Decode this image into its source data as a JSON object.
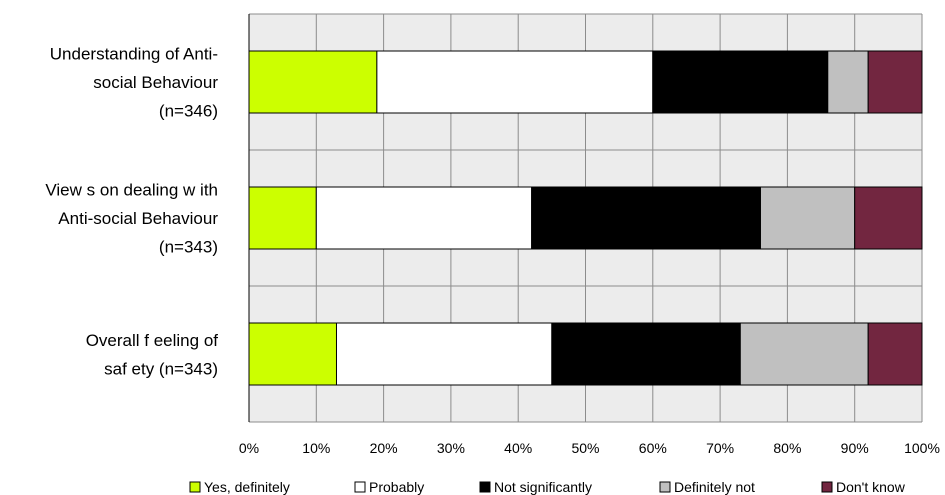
{
  "chart_data": {
    "type": "bar",
    "orientation": "horizontal",
    "stacked": "percent",
    "categories": [
      [
        "Understanding of Anti-",
        "social Behaviour",
        "(n=346)"
      ],
      [
        "View s on dealing w ith",
        "Anti-social Behaviour",
        "(n=343)"
      ],
      [
        "Overall f eeling of",
        "saf ety (n=343)"
      ]
    ],
    "series": [
      {
        "name": "Yes, definitely",
        "color": "#ccff00",
        "values": [
          19,
          10,
          13
        ]
      },
      {
        "name": "Probably",
        "color": "#ffffff",
        "values": [
          41,
          32,
          32
        ]
      },
      {
        "name": "Not significantly",
        "color": "#000000",
        "values": [
          26,
          34,
          28
        ]
      },
      {
        "name": "Definitely not",
        "color": "#c0c0c0",
        "values": [
          6,
          14,
          19
        ]
      },
      {
        "name": "Don't know",
        "color": "#722640",
        "values": [
          8,
          10,
          8
        ]
      }
    ],
    "x_ticks": [
      "0%",
      "10%",
      "20%",
      "30%",
      "40%",
      "50%",
      "60%",
      "70%",
      "80%",
      "90%",
      "100%"
    ],
    "xlim": [
      0,
      100
    ],
    "grid": true,
    "plot_background": "#ececec",
    "legend_position": "bottom"
  }
}
